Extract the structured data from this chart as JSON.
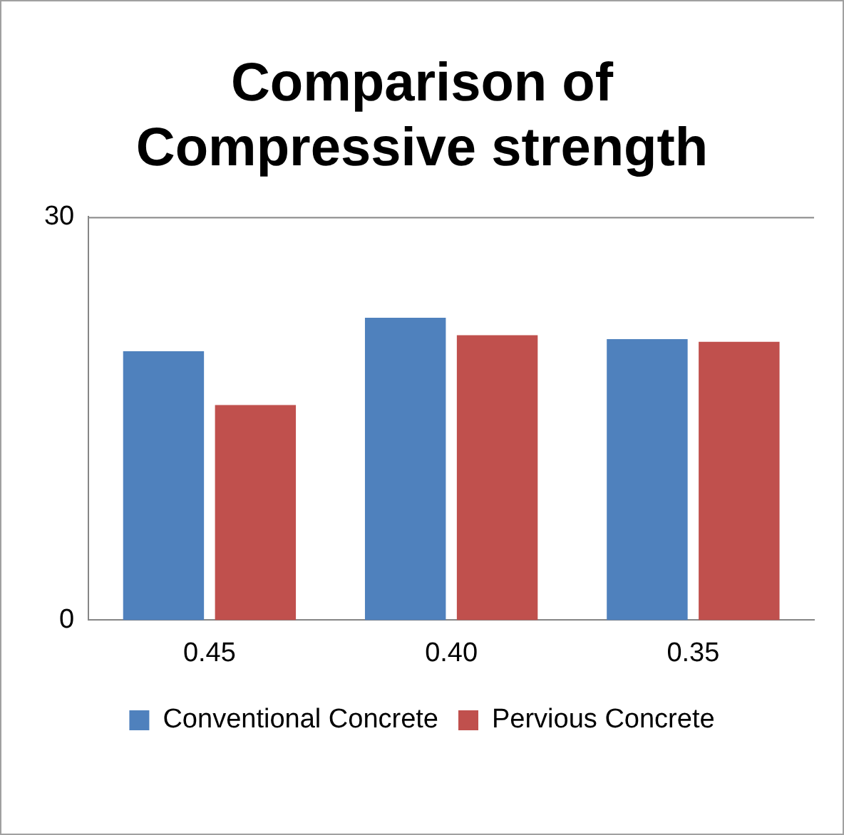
{
  "chart_data": {
    "type": "bar",
    "title": "Comparison of Compressive strength",
    "categories": [
      "0.45",
      "0.40",
      "0.35"
    ],
    "series": [
      {
        "name": "Conventional Concrete",
        "color": "#4f81bd",
        "values": [
          20.0,
          22.5,
          20.9
        ]
      },
      {
        "name": "Pervious Concrete",
        "color": "#c0504d",
        "values": [
          16.0,
          21.2,
          20.7
        ]
      }
    ],
    "ylim": [
      0,
      30
    ],
    "yticks": [
      0,
      30
    ],
    "legend": "bottom"
  }
}
